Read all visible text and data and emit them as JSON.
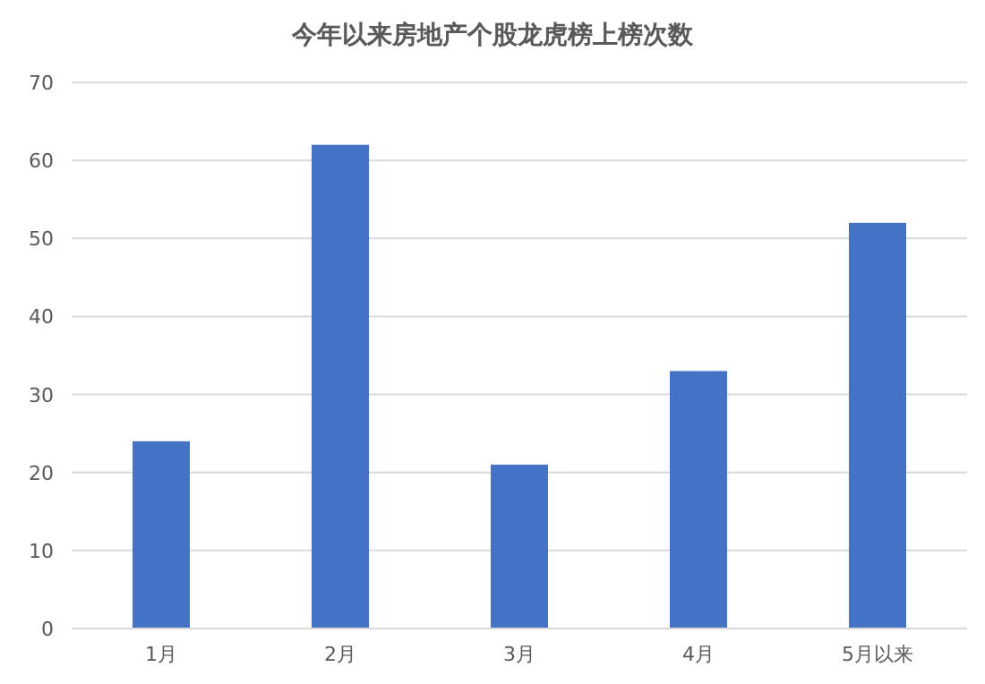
{
  "chart_data": {
    "type": "bar",
    "title": "今年以来房地产个股龙虎榜上榜次数",
    "categories": [
      "1月",
      "2月",
      "3月",
      "4月",
      "5月以来"
    ],
    "values": [
      24,
      62,
      21,
      33,
      52
    ],
    "color": "#4472c4",
    "ylim": [
      0,
      70
    ],
    "yticks": [
      0,
      10,
      20,
      30,
      40,
      50,
      60,
      70
    ],
    "grid": "y"
  }
}
